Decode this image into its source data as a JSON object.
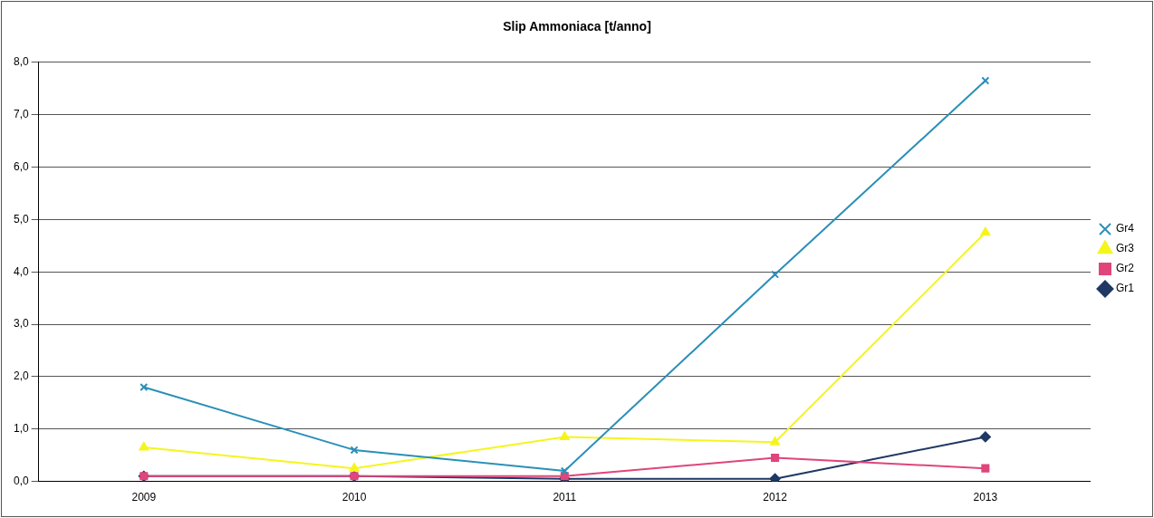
{
  "chart_data": {
    "type": "line",
    "title": "Slip Ammoniaca [t/anno]",
    "categories": [
      "2009",
      "2010",
      "2011",
      "2012",
      "2013"
    ],
    "series": [
      {
        "name": "Gr1",
        "color": "#1f3864",
        "marker": "diamond",
        "values": [
          0.1,
          0.1,
          0.05,
          0.05,
          0.85
        ]
      },
      {
        "name": "Gr2",
        "color": "#e0457b",
        "marker": "square",
        "values": [
          0.1,
          0.1,
          0.1,
          0.45,
          0.25
        ]
      },
      {
        "name": "Gr3",
        "color": "#f5f51e",
        "marker": "triangle",
        "values": [
          0.65,
          0.25,
          0.85,
          0.75,
          4.75
        ]
      },
      {
        "name": "Gr4",
        "color": "#2a8fb8",
        "marker": "cross",
        "values": [
          1.8,
          0.6,
          0.2,
          3.95,
          7.65
        ]
      }
    ],
    "ylim": [
      0,
      8
    ],
    "yticks": [
      {
        "value": 0,
        "label": "0,0"
      },
      {
        "value": 1,
        "label": "1,0"
      },
      {
        "value": 2,
        "label": "2,0"
      },
      {
        "value": 3,
        "label": "3,0"
      },
      {
        "value": 4,
        "label": "4,0"
      },
      {
        "value": 5,
        "label": "5,0"
      },
      {
        "value": 6,
        "label": "6,0"
      },
      {
        "value": 7,
        "label": "7,0"
      },
      {
        "value": 8,
        "label": "8,0"
      }
    ],
    "grid": "y",
    "legend": "right",
    "line_style": "solid"
  }
}
